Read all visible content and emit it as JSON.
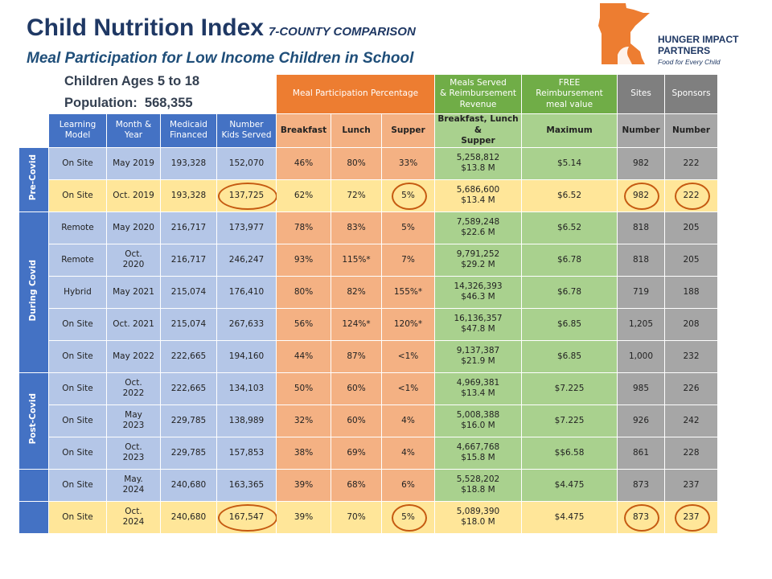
{
  "header": {
    "title": "Child Nutrition Index",
    "tag": "7-COUNTY COMPARISON",
    "subtitle": "Meal Participation for Low Income Children in School"
  },
  "logo": {
    "lines": [
      "HUNGER IMPACT",
      "PARTNERS"
    ],
    "tagline": "Food for Every Child"
  },
  "info": [
    "Children Ages 5 to 18",
    "Population:  568,355"
  ],
  "table": {
    "top_headers": [
      "Meal Participation Percentage",
      "Meals Served\n& Reimbursement\nRevenue",
      "FREE\nReimbursement\nmeal value",
      "Sites",
      "Sponsors"
    ],
    "columns": [
      "Learning\nModel",
      "Month &\nYear",
      "Medicaid\nFinanced",
      "Number\nKids Served",
      "Breakfast",
      "Lunch",
      "Supper",
      "Breakfast, Lunch &\nSupper",
      "Maximum",
      "Number",
      "Number"
    ],
    "groups": [
      {
        "label": "Pre-Covid",
        "rows": [
          [
            "On Site",
            "May 2019",
            "193,328",
            "152,070",
            "46%",
            "80%",
            "33%",
            "5,258,812\n$13.8 M",
            "$5.14",
            "982",
            "222"
          ],
          [
            "On Site",
            "Oct. 2019",
            "193,328",
            "137,725",
            "62%",
            "72%",
            "5%",
            "5,686,600\n$13.4 M",
            "$6.52",
            "982",
            "222"
          ]
        ]
      },
      {
        "label": "During Covid",
        "rows": [
          [
            "Remote",
            "May 2020",
            "216,717",
            "173,977",
            "78%",
            "83%",
            "5%",
            "7,589,248\n$22.6 M",
            "$6.52",
            "818",
            "205"
          ],
          [
            "Remote",
            "Oct.\n2020",
            "216,717",
            "246,247",
            "93%",
            "115%*",
            "7%",
            "9,791,252\n$29.2 M",
            "$6.78",
            "818",
            "205"
          ],
          [
            "Hybrid",
            "May 2021",
            "215,074",
            "176,410",
            "80%",
            "82%",
            "155%*",
            "14,326,393\n$46.3 M",
            "$6.78",
            "719",
            "188"
          ],
          [
            "On Site",
            "Oct. 2021",
            "215,074",
            "267,633",
            "56%",
            "124%*",
            "120%*",
            "16,136,357\n$47.8 M",
            "$6.85",
            "1,205",
            "208"
          ],
          [
            "On Site",
            "May 2022",
            "222,665",
            "194,160",
            "44%",
            "87%",
            "<1%",
            "9,137,387\n$21.9 M",
            "$6.85",
            "1,000",
            "232"
          ]
        ]
      },
      {
        "label": "Post-Covid",
        "rows": [
          [
            "On Site",
            "Oct.\n2022",
            "222,665",
            "134,103",
            "50%",
            "60%",
            "<1%",
            "4,969,381\n$13.4 M",
            "$7.225",
            "985",
            "226"
          ],
          [
            "On Site",
            "May\n2023",
            "229,785",
            "138,989",
            "32%",
            "60%",
            "4%",
            "5,008,388\n$16.0 M",
            "$7.225",
            "926",
            "242"
          ],
          [
            "On Site",
            "Oct.\n2023",
            "229,785",
            "157,853",
            "38%",
            "69%",
            "4%",
            "4,667,768\n$15.8 M",
            "$$6.58",
            "861",
            "228"
          ]
        ]
      },
      {
        "rows": [
          [
            "On Site",
            "May.\n2024",
            "240,680",
            "163,365",
            "39%",
            "68%",
            "6%",
            "5,528,202\n$18.8 M",
            "$4.475",
            "873",
            "237"
          ]
        ]
      },
      {
        "rows": [
          [
            "On Site",
            "Oct.\n2024",
            "240,680",
            "167,547",
            "39%",
            "70%",
            "5%",
            "5,089,390\n$18.0 M",
            "$4.475",
            "873",
            "237"
          ]
        ]
      }
    ]
  }
}
